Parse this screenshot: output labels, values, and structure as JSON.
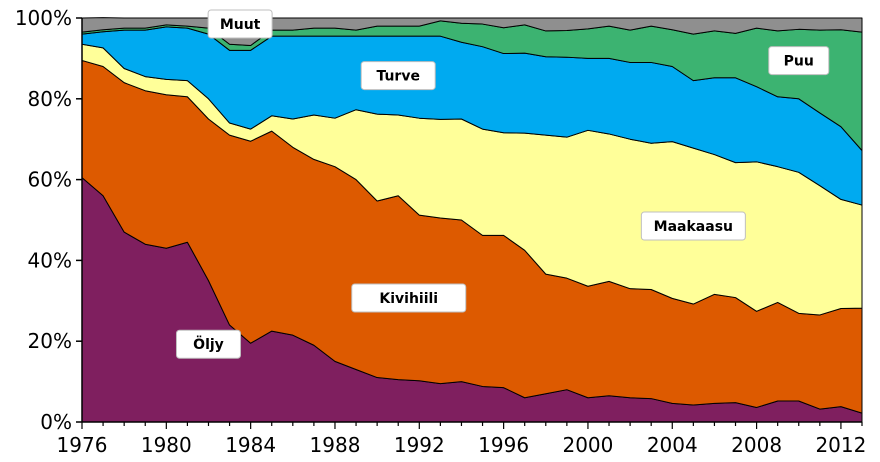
{
  "chart_data": {
    "type": "area",
    "stacked": true,
    "x": [
      1976,
      1977,
      1978,
      1979,
      1980,
      1981,
      1982,
      1983,
      1984,
      1985,
      1986,
      1987,
      1988,
      1989,
      1990,
      1991,
      1992,
      1993,
      1994,
      1995,
      1996,
      1997,
      1998,
      1999,
      2000,
      2001,
      2002,
      2003,
      2004,
      2005,
      2006,
      2007,
      2008,
      2009,
      2010,
      2011,
      2012,
      2013
    ],
    "x_tick_labels": [
      "1976",
      "1980",
      "1984",
      "1988",
      "1992",
      "1996",
      "2000",
      "2004",
      "2008",
      "2012"
    ],
    "x_tick_values": [
      1976,
      1980,
      1984,
      1988,
      1992,
      1996,
      2000,
      2004,
      2008,
      2012
    ],
    "xlim": [
      1976,
      2013
    ],
    "ylim": [
      0,
      100
    ],
    "y_tick_labels": [
      "0%",
      "20%",
      "40%",
      "60%",
      "80%",
      "100%"
    ],
    "y_tick_values": [
      0,
      20,
      40,
      60,
      80,
      100
    ],
    "grid": false,
    "series": [
      {
        "name": "Öljy",
        "color": "#7f1f5f",
        "values": [
          60.5,
          56,
          47,
          44,
          43,
          44.5,
          35,
          24,
          19.5,
          22.5,
          21.5,
          19,
          15,
          13,
          11,
          10.5,
          10.2,
          9.5,
          10,
          8.8,
          8.5,
          6,
          7,
          8,
          6,
          6.5,
          6,
          5.8,
          4.6,
          4.2,
          4.6,
          4.8,
          3.6,
          5.2,
          5.2,
          3.2,
          3.8,
          2.2
        ]
      },
      {
        "name": "Kivihiili",
        "color": "#dd5a00",
        "values": [
          29,
          32,
          37,
          38,
          38,
          36,
          40,
          47,
          50,
          49.5,
          46.5,
          46,
          48.2,
          47,
          43.7,
          45.5,
          41,
          41,
          40,
          37.4,
          37.7,
          36.5,
          29.6,
          27.6,
          27.6,
          28.3,
          27,
          27,
          26,
          25,
          27,
          26,
          23.8,
          24.4,
          21.7,
          23.3,
          24.3,
          26
        ]
      },
      {
        "name": "Maakaasu",
        "color": "#ffff99",
        "values": [
          4,
          4.6,
          3.5,
          3.5,
          3.8,
          4,
          5,
          3,
          3,
          3.8,
          7,
          11,
          12,
          17.3,
          21.5,
          20,
          24,
          24.4,
          25,
          26.3,
          25.4,
          29,
          34.4,
          34.9,
          38.6,
          36.5,
          37,
          36.2,
          38.8,
          38.6,
          34.6,
          33.4,
          37,
          33.6,
          34.9,
          32,
          27,
          25.5
        ]
      },
      {
        "name": "Turve",
        "color": "#00aaf0",
        "values": [
          2.5,
          4,
          9.5,
          11.5,
          13,
          13,
          16,
          18,
          19.5,
          19.7,
          20.5,
          19.5,
          20.3,
          18.2,
          19.3,
          19.5,
          20.3,
          20.6,
          19,
          20.4,
          19.6,
          19.8,
          19.4,
          19.8,
          17.8,
          18.7,
          19,
          20,
          18.6,
          16.7,
          19,
          21,
          18.6,
          17.3,
          18.2,
          18,
          18,
          13.5
        ]
      },
      {
        "name": "Puu",
        "color": "#3cb371",
        "values": [
          0.5,
          0.5,
          0.5,
          0.5,
          0.5,
          0.5,
          1.5,
          1.5,
          1.2,
          1.5,
          1.5,
          2,
          2,
          1.5,
          2.5,
          2.5,
          2.5,
          3.8,
          4.7,
          5.6,
          6.4,
          7,
          6.4,
          6.6,
          7.3,
          8,
          8,
          9,
          9.1,
          11.5,
          11.6,
          11,
          14.5,
          16.3,
          17.2,
          20.5,
          24,
          29.3
        ]
      },
      {
        "name": "Muut",
        "color": "#8f8f8f",
        "values": [
          3.5,
          3,
          2.5,
          2.5,
          1.7,
          2,
          2.5,
          6.5,
          6.8,
          3,
          3,
          2.5,
          2.5,
          3,
          2,
          2,
          2,
          0.7,
          1.3,
          1.5,
          2.4,
          1.7,
          3.2,
          3.1,
          2.7,
          2,
          3,
          2,
          2.9,
          4,
          3.2,
          3.8,
          2.5,
          3.2,
          2.8,
          3,
          2.9,
          3.5
        ]
      }
    ]
  }
}
